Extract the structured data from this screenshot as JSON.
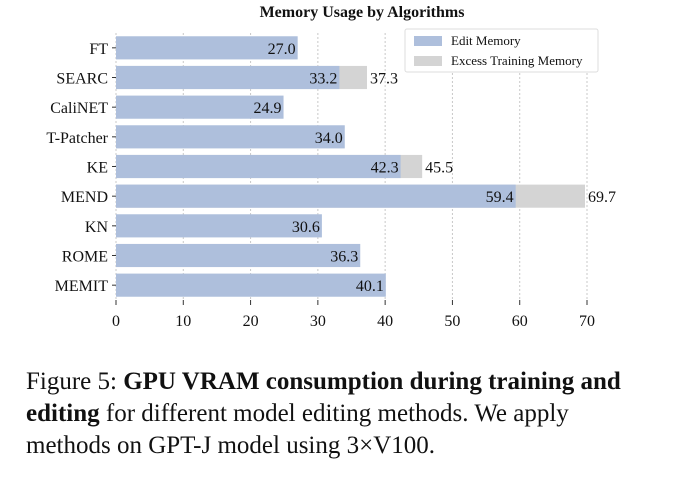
{
  "chart_data": {
    "type": "bar",
    "orientation": "horizontal",
    "title": "Memory Usage by Algorithms",
    "categories": [
      "FT",
      "SEARC",
      "CaliNET",
      "T-Patcher",
      "KE",
      "MEND",
      "KN",
      "ROME",
      "MEMIT"
    ],
    "series": [
      {
        "name": "Edit Memory",
        "color": "#aebfdc",
        "values": [
          27.0,
          33.2,
          24.9,
          34.0,
          42.3,
          59.4,
          30.6,
          36.3,
          40.1
        ],
        "labels": [
          "27.0",
          "33.2",
          "24.9",
          "34.0",
          "42.3",
          "59.4",
          "30.6",
          "36.3",
          "40.1"
        ]
      },
      {
        "name": "Excess Training Memory",
        "color": "#d4d4d4",
        "values": [
          null,
          37.3,
          null,
          null,
          45.5,
          69.7,
          null,
          null,
          null
        ],
        "labels": [
          null,
          "37.3",
          null,
          null,
          "45.5",
          "69.7",
          null,
          null,
          null
        ]
      }
    ],
    "xlim": [
      0,
      70
    ],
    "xticks": [
      "0",
      "10",
      "20",
      "30",
      "40",
      "50",
      "60",
      "70"
    ],
    "xlabel": "",
    "ylabel": "",
    "grid": "vertical dotted",
    "legend": "top-right"
  },
  "caption": {
    "label": "Figure 5:",
    "bold": "GPU VRAM consumption during training and editing",
    "rest": "for different model editing methods. We apply methods on GPT-J model using 3×V100."
  }
}
